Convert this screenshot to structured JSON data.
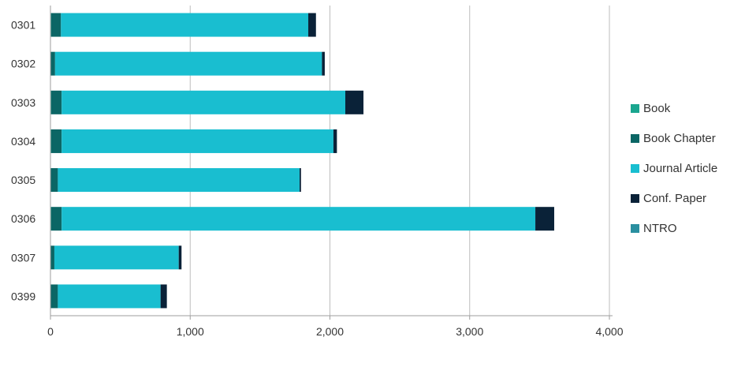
{
  "chart_data": {
    "type": "bar",
    "orientation": "horizontal",
    "stacked": true,
    "categories": [
      "0301",
      "0302",
      "0303",
      "0304",
      "0305",
      "0306",
      "0307",
      "0399"
    ],
    "series": [
      {
        "name": "Book",
        "color": "#1aa68f",
        "values": [
          5,
          3,
          5,
          5,
          3,
          5,
          3,
          3
        ]
      },
      {
        "name": "Book Chapter",
        "color": "#0b6665",
        "values": [
          70,
          30,
          75,
          75,
          50,
          75,
          25,
          50
        ]
      },
      {
        "name": "Journal Article",
        "color": "#19bed0",
        "values": [
          1770,
          1910,
          2030,
          1945,
          1730,
          3390,
          890,
          735
        ]
      },
      {
        "name": "Conf. Paper",
        "color": "#0a2238",
        "values": [
          55,
          20,
          130,
          25,
          10,
          135,
          20,
          45
        ]
      },
      {
        "name": "NTRO",
        "color": "#2a8fa0",
        "values": [
          0,
          0,
          0,
          0,
          0,
          0,
          0,
          0
        ]
      }
    ],
    "xlim": [
      0,
      4000
    ],
    "xticks": [
      0,
      1000,
      2000,
      3000,
      4000
    ],
    "xtick_labels": [
      "0",
      "1,000",
      "2,000",
      "3,000",
      "4,000"
    ],
    "grid": "vertical",
    "legend": "right",
    "title": "",
    "xlabel": "",
    "ylabel": ""
  }
}
